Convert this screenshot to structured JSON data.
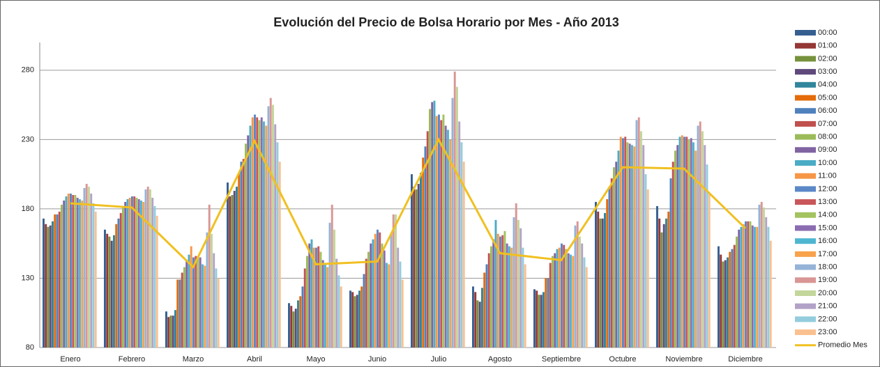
{
  "chart_data": {
    "type": "bar",
    "title": "Evolución del Precio de Bolsa Horario por Mes - Año 2013",
    "categories": [
      "Enero",
      "Febrero",
      "Marzo",
      "Abril",
      "Mayo",
      "Junio",
      "Julio",
      "Agosto",
      "Septiembre",
      "Octubre",
      "Noviembre",
      "Diciembre"
    ],
    "ylim": [
      80,
      300
    ],
    "yticks": [
      80,
      130,
      180,
      230,
      280
    ],
    "grid": true,
    "legend": "right",
    "series": [
      {
        "name": "00:00",
        "color": "#365f91",
        "values": [
          173,
          165,
          106,
          199,
          112,
          121,
          205,
          124,
          122,
          185,
          182,
          153
        ]
      },
      {
        "name": "01:00",
        "color": "#953735",
        "values": [
          169,
          162,
          102,
          189,
          110,
          120,
          196,
          120,
          121,
          178,
          173,
          147
        ]
      },
      {
        "name": "02:00",
        "color": "#76923c",
        "values": [
          167,
          160,
          103,
          190,
          106,
          117,
          194,
          114,
          118,
          173,
          163,
          142
        ]
      },
      {
        "name": "03:00",
        "color": "#5f497a",
        "values": [
          168,
          157,
          103,
          193,
          108,
          118,
          198,
          113,
          118,
          173,
          169,
          143
        ]
      },
      {
        "name": "04:00",
        "color": "#31859c",
        "values": [
          171,
          161,
          107,
          196,
          114,
          121,
          206,
          123,
          120,
          177,
          173,
          145
        ]
      },
      {
        "name": "05:00",
        "color": "#e46c0a",
        "values": [
          176,
          169,
          129,
          206,
          117,
          124,
          217,
          134,
          130,
          187,
          178,
          149
        ]
      },
      {
        "name": "06:00",
        "color": "#4f81bd",
        "values": [
          176,
          173,
          129,
          214,
          124,
          133,
          225,
          140,
          130,
          196,
          202,
          151
        ]
      },
      {
        "name": "07:00",
        "color": "#c0504d",
        "values": [
          178,
          177,
          134,
          216,
          137,
          144,
          236,
          148,
          141,
          202,
          214,
          154
        ]
      },
      {
        "name": "08:00",
        "color": "#9bbb59",
        "values": [
          183,
          182,
          138,
          227,
          146,
          149,
          252,
          153,
          146,
          210,
          222,
          160
        ]
      },
      {
        "name": "09:00",
        "color": "#8064a2",
        "values": [
          186,
          185,
          143,
          233,
          155,
          155,
          257,
          158,
          148,
          214,
          226,
          165
        ]
      },
      {
        "name": "10:00",
        "color": "#4bacc6",
        "values": [
          189,
          187,
          147,
          240,
          158,
          158,
          258,
          172,
          151,
          222,
          232,
          167
        ]
      },
      {
        "name": "11:00",
        "color": "#f79646",
        "values": [
          191,
          188,
          153,
          246,
          152,
          162,
          247,
          162,
          152,
          232,
          233,
          169
        ]
      },
      {
        "name": "12:00",
        "color": "#5b88c6",
        "values": [
          191,
          189,
          145,
          248,
          152,
          165,
          248,
          160,
          155,
          231,
          232,
          171
        ]
      },
      {
        "name": "13:00",
        "color": "#c9565a",
        "values": [
          190,
          189,
          146,
          246,
          153,
          163,
          244,
          161,
          154,
          232,
          232,
          171
        ]
      },
      {
        "name": "14:00",
        "color": "#a3c35f",
        "values": [
          190,
          188,
          146,
          244,
          149,
          155,
          248,
          164,
          151,
          228,
          230,
          171
        ]
      },
      {
        "name": "15:00",
        "color": "#8b6cb0",
        "values": [
          188,
          187,
          145,
          246,
          143,
          150,
          240,
          155,
          148,
          227,
          231,
          168
        ]
      },
      {
        "name": "16:00",
        "color": "#4fb6d1",
        "values": [
          187,
          186,
          140,
          243,
          140,
          141,
          237,
          153,
          147,
          226,
          228,
          167
        ]
      },
      {
        "name": "17:00",
        "color": "#f8a24c",
        "values": [
          186,
          185,
          139,
          240,
          138,
          140,
          230,
          152,
          146,
          225,
          222,
          167
        ]
      },
      {
        "name": "18:00",
        "color": "#95b3d7",
        "values": [
          195,
          194,
          163,
          254,
          170,
          162,
          260,
          174,
          168,
          244,
          240,
          183
        ]
      },
      {
        "name": "19:00",
        "color": "#d99694",
        "values": [
          198,
          196,
          183,
          260,
          183,
          176,
          279,
          184,
          171,
          246,
          243,
          185
        ]
      },
      {
        "name": "20:00",
        "color": "#c3d69b",
        "values": [
          196,
          194,
          162,
          255,
          165,
          176,
          268,
          172,
          160,
          236,
          236,
          181
        ]
      },
      {
        "name": "21:00",
        "color": "#b3a2c7",
        "values": [
          191,
          188,
          148,
          241,
          144,
          152,
          243,
          166,
          155,
          226,
          226,
          174
        ]
      },
      {
        "name": "22:00",
        "color": "#93cddd",
        "values": [
          184,
          182,
          137,
          228,
          132,
          142,
          228,
          152,
          145,
          205,
          212,
          167
        ]
      },
      {
        "name": "23:00",
        "color": "#fac090",
        "values": [
          178,
          175,
          130,
          214,
          124,
          129,
          214,
          140,
          138,
          194,
          191,
          157
        ]
      },
      {
        "name": "Promedio Mes",
        "color": "#f0c020",
        "type": "line",
        "values": [
          184,
          181,
          138,
          229,
          140,
          142,
          230,
          148,
          143,
          210,
          209,
          166
        ]
      }
    ]
  }
}
